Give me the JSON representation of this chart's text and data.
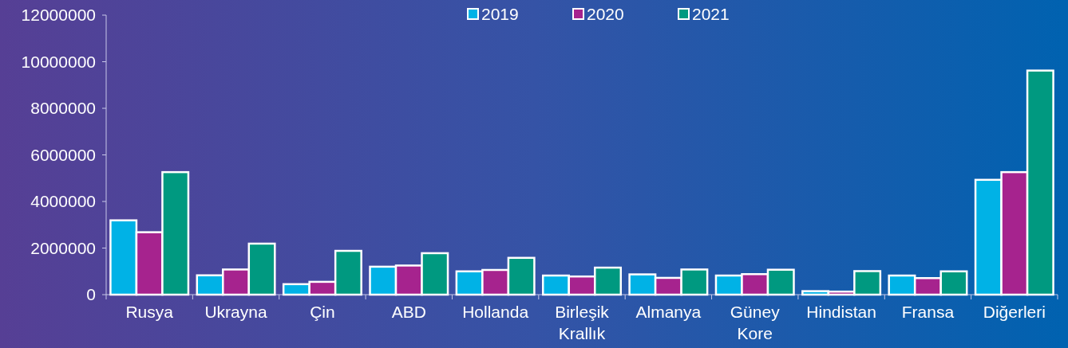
{
  "chart_data": {
    "type": "bar",
    "categories": [
      "Rusya",
      "Ukrayna",
      "Çin",
      "ABD",
      "Hollanda",
      "Birleşik Krallık",
      "Almanya",
      "Güney Kore",
      "Hindistan",
      "Fransa",
      "Diğerleri"
    ],
    "series": [
      {
        "name": "2019",
        "color": "#00b2e6",
        "values": [
          3190000,
          830000,
          450000,
          1200000,
          1000000,
          820000,
          870000,
          820000,
          150000,
          820000,
          4930000
        ]
      },
      {
        "name": "2020",
        "color": "#a6238e",
        "values": [
          2680000,
          1080000,
          550000,
          1250000,
          1060000,
          780000,
          720000,
          880000,
          130000,
          710000,
          5260000
        ]
      },
      {
        "name": "2021",
        "color": "#009980",
        "values": [
          5260000,
          2190000,
          1880000,
          1780000,
          1580000,
          1160000,
          1080000,
          1070000,
          1010000,
          1000000,
          9620000
        ]
      }
    ],
    "ylim": [
      0,
      12000000
    ],
    "yticks": [
      0,
      2000000,
      4000000,
      6000000,
      8000000,
      10000000,
      12000000
    ],
    "legend": "top",
    "grid": false
  }
}
